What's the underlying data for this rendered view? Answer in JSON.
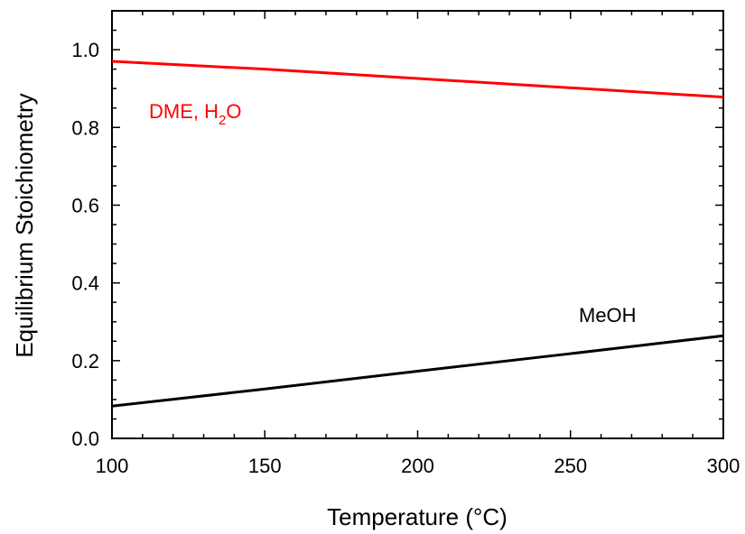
{
  "chart_data": {
    "type": "line",
    "xlabel": "Temperature (°C)",
    "ylabel": "Equilibrium Stoichiometry",
    "xlim": [
      100,
      300
    ],
    "ylim": [
      0.0,
      1.1
    ],
    "x_ticks": [
      100,
      150,
      200,
      250,
      300
    ],
    "x_tick_labels": [
      "100",
      "150",
      "200",
      "250",
      "300"
    ],
    "y_ticks": [
      0.0,
      0.2,
      0.4,
      0.6,
      0.8,
      1.0
    ],
    "y_tick_labels": [
      "0.0",
      "0.2",
      "0.4",
      "0.6",
      "0.8",
      "1.0"
    ],
    "grid": false,
    "series": [
      {
        "label_main": "DME, H",
        "label_sub": "2",
        "label_tail": "O",
        "color": "#ff0000",
        "x": [
          100,
          150,
          200,
          250,
          300
        ],
        "y": [
          0.97,
          0.95,
          0.926,
          0.902,
          0.878
        ]
      },
      {
        "label_main": "MeOH",
        "label_sub": "",
        "label_tail": "",
        "color": "#000000",
        "x": [
          100,
          150,
          200,
          250,
          300
        ],
        "y": [
          0.083,
          0.127,
          0.173,
          0.218,
          0.264
        ]
      }
    ]
  }
}
